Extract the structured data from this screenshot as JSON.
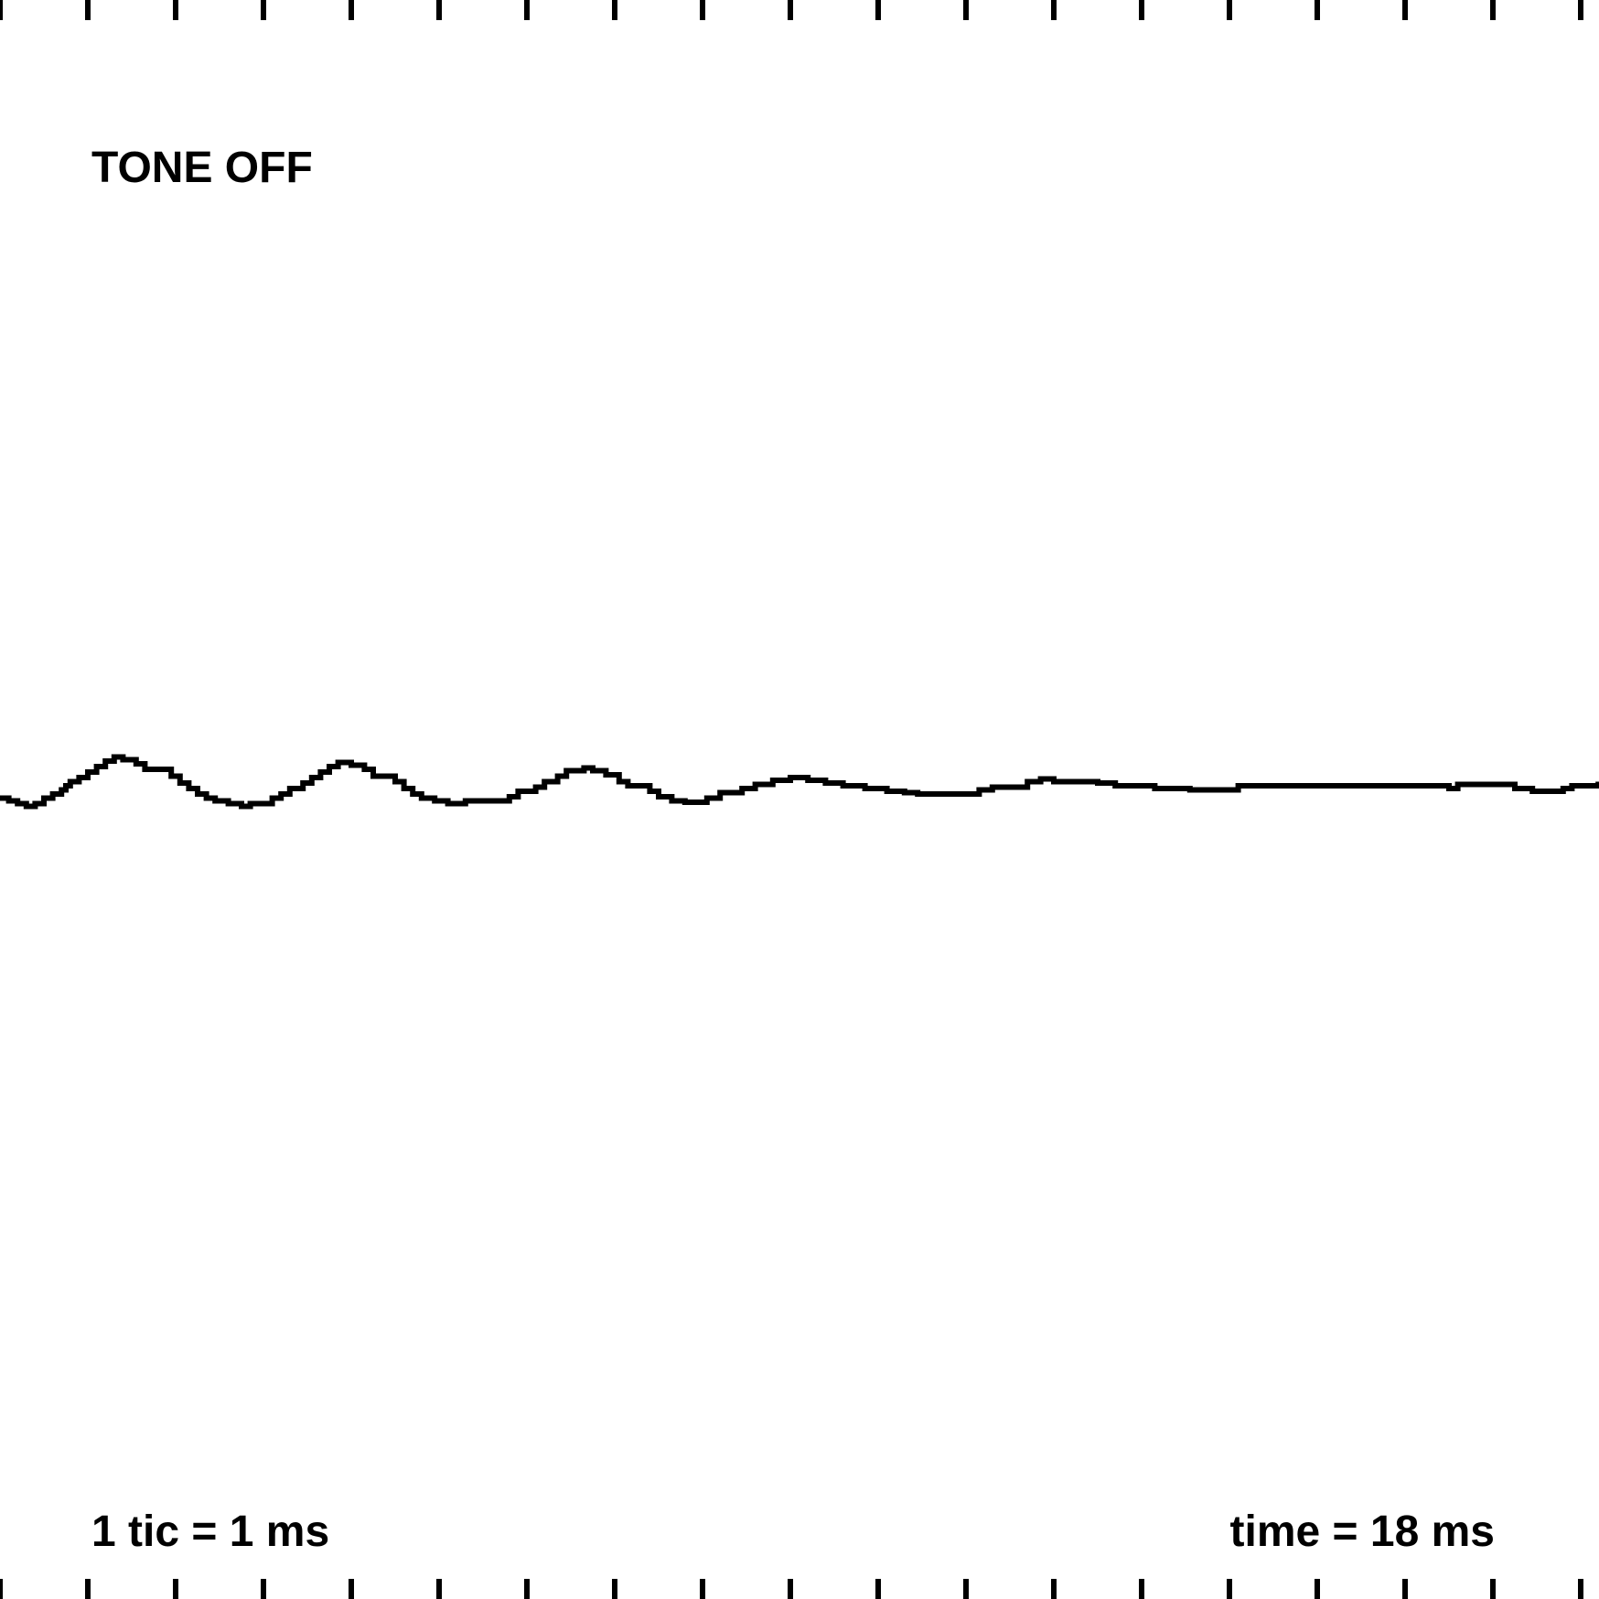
{
  "status_label": "TONE OFF",
  "scale_label": "1 tic = 1 ms",
  "time_label": "time = 18 ms",
  "colors": {
    "background": "#ffffff",
    "trace": "#000000"
  },
  "chart_data": {
    "type": "line",
    "title": "",
    "xlabel": "",
    "ylabel": "",
    "x_unit": "ms",
    "tick_interval_ms": 1,
    "xlim": [
      0,
      18.2
    ],
    "ylim": [
      -128,
      128
    ],
    "grid": false,
    "interpolation": "step",
    "series": [
      {
        "x": [
          0,
          0.1,
          0.2,
          0.3,
          0.4,
          0.5,
          0.6,
          0.7,
          0.75,
          0.8,
          0.9,
          1.0,
          1.1,
          1.2,
          1.3,
          1.4,
          1.55,
          1.65,
          1.95,
          2.05,
          2.15,
          2.25,
          2.35,
          2.45,
          2.6,
          2.75,
          2.85,
          3.1,
          3.2,
          3.3,
          3.45,
          3.55,
          3.65,
          3.75,
          3.85,
          4.0,
          4.15,
          4.25,
          4.5,
          4.6,
          4.7,
          4.8,
          4.95,
          5.1,
          5.2,
          5.3,
          5.8,
          5.9,
          6.1,
          6.2,
          6.35,
          6.45,
          6.65,
          6.75,
          6.9,
          7.05,
          7.15,
          7.4,
          7.5,
          7.65,
          7.8,
          8.05,
          8.2,
          8.45,
          8.6,
          8.8,
          9.0,
          9.2,
          9.4,
          9.6,
          9.85,
          10.1,
          10.3,
          10.45,
          11.05,
          11.15,
          11.3,
          11.7,
          11.85,
          12.0,
          12.5,
          12.7,
          13.15,
          13.55,
          14.1,
          16.25,
          16.5,
          16.6,
          17.25,
          17.45,
          17.8,
          17.9,
          18.2
        ],
        "y": [
          1,
          -1,
          -3,
          -5,
          -3,
          1,
          4,
          7,
          10,
          13,
          16,
          20,
          24,
          28,
          31,
          29,
          26,
          22,
          17,
          12,
          8,
          4,
          1,
          -1,
          -3,
          -5,
          -3,
          1,
          4,
          8,
          12,
          16,
          20,
          24,
          27,
          25,
          22,
          17,
          13,
          8,
          4,
          1,
          -1,
          -3,
          -3,
          -1,
          2,
          6,
          9,
          13,
          17,
          21,
          23,
          21,
          18,
          13,
          10,
          6,
          2,
          -1,
          -2,
          1,
          5,
          8,
          11,
          14,
          16,
          14,
          12,
          10,
          8,
          6,
          5,
          4,
          4,
          7,
          9,
          13,
          15,
          13,
          12,
          10,
          8,
          7,
          10,
          10,
          8,
          11,
          8,
          6,
          8,
          10,
          11
        ]
      }
    ]
  }
}
